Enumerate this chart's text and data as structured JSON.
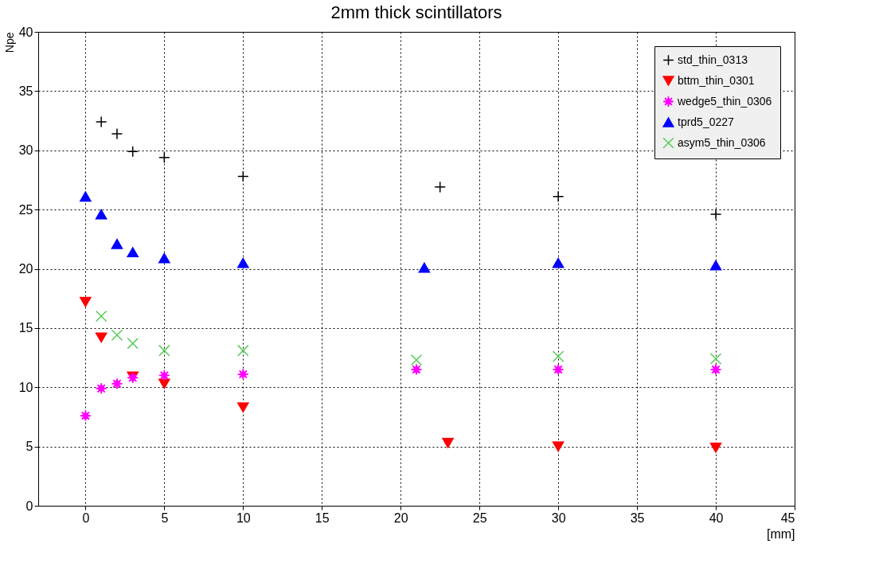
{
  "chart_data": {
    "type": "scatter",
    "title": "2mm thick scintillators",
    "xlabel": "[mm]",
    "ylabel": "Npe",
    "xlim": [
      -3,
      45
    ],
    "xticks": [
      0,
      5,
      10,
      15,
      20,
      25,
      30,
      35,
      40,
      45
    ],
    "ylim": [
      0,
      40
    ],
    "yticks": [
      0,
      5,
      10,
      15,
      20,
      25,
      30,
      35,
      40
    ],
    "grid": true,
    "legend": "top right",
    "series": [
      {
        "name": "std_thin_0313",
        "color": "#000000",
        "marker": "cross",
        "x": [
          1,
          2,
          3,
          5,
          10,
          22.5,
          30,
          40
        ],
        "values": [
          32.4,
          31.4,
          29.9,
          29.4,
          27.8,
          26.9,
          26.1,
          24.6
        ]
      },
      {
        "name": "bttm_thin_0301",
        "color": "#ff0000",
        "marker": "triangle-down",
        "x": [
          0,
          1,
          3,
          5,
          10,
          23,
          30,
          40
        ],
        "values": [
          17.2,
          14.2,
          10.9,
          10.3,
          8.3,
          5.3,
          5.0,
          4.9
        ]
      },
      {
        "name": "wedge5_thin_0306",
        "color": "#ff00ff",
        "marker": "star",
        "x": [
          0,
          1,
          2,
          3,
          5,
          10,
          21,
          30,
          40
        ],
        "values": [
          7.6,
          9.9,
          10.3,
          10.8,
          11.0,
          11.1,
          11.5,
          11.5,
          11.5
        ]
      },
      {
        "name": "tprd5_0227",
        "color": "#0000ff",
        "marker": "triangle",
        "x": [
          0,
          1,
          2,
          3,
          5,
          10,
          21.5,
          30,
          40
        ],
        "values": [
          26.1,
          24.6,
          22.1,
          21.4,
          20.9,
          20.5,
          20.1,
          20.5,
          20.3
        ]
      },
      {
        "name": "asym5_thin_0306",
        "color": "#55cc55",
        "marker": "x",
        "x": [
          1,
          2,
          3,
          5,
          10,
          21,
          30,
          40
        ],
        "values": [
          16.0,
          14.4,
          13.7,
          13.1,
          13.1,
          12.3,
          12.6,
          12.4
        ]
      }
    ]
  }
}
